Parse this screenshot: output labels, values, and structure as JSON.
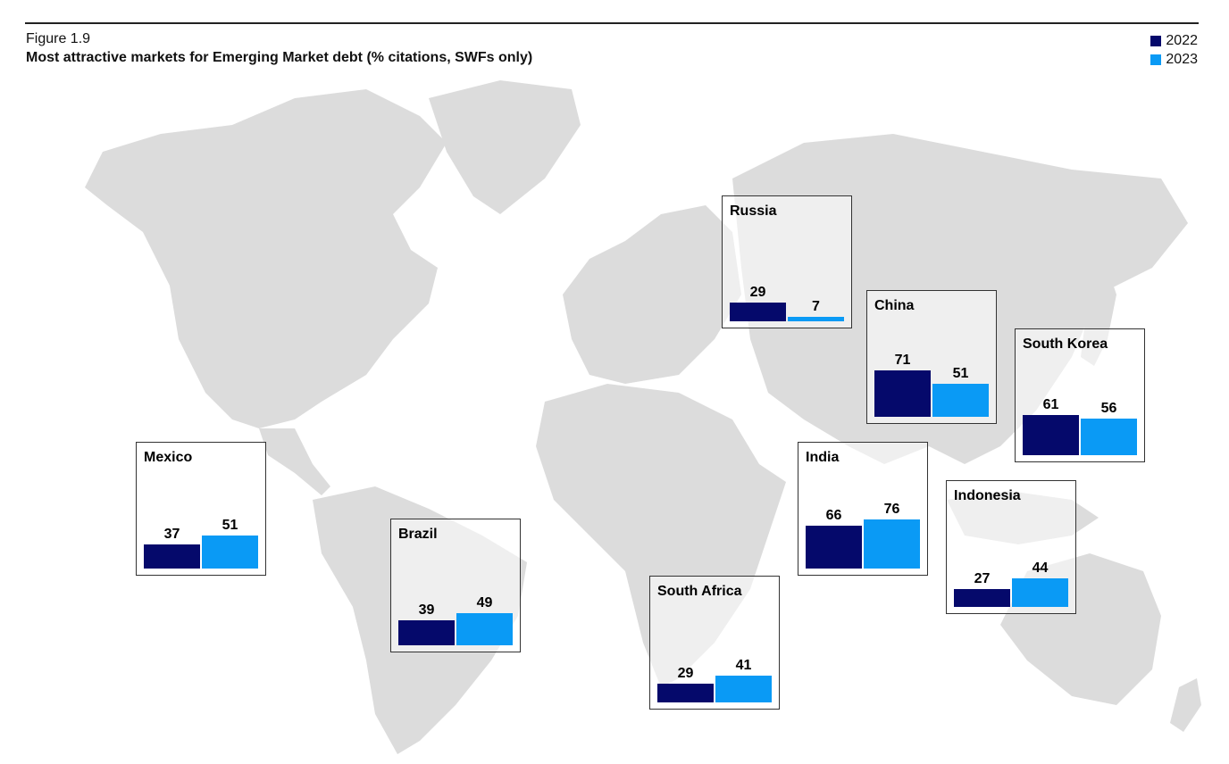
{
  "figure_label": "Figure 1.9",
  "title": "Most attractive markets for Emerging Market debt (% citations, SWFs only)",
  "colors": {
    "2022": "#05096b",
    "2023": "#0a9af5",
    "land": "#dcdcdc",
    "land_highlight": "#eeeeee"
  },
  "chart_data": {
    "type": "bar",
    "title": "Most attractive markets for Emerging Market debt (% citations, SWFs only)",
    "series_names": [
      "2022",
      "2023"
    ],
    "markets": [
      {
        "name": "Russia",
        "values": [
          29,
          7
        ]
      },
      {
        "name": "China",
        "values": [
          71,
          51
        ]
      },
      {
        "name": "South Korea",
        "values": [
          61,
          56
        ]
      },
      {
        "name": "Mexico",
        "values": [
          37,
          51
        ]
      },
      {
        "name": "India",
        "values": [
          66,
          76
        ]
      },
      {
        "name": "Indonesia",
        "values": [
          27,
          44
        ]
      },
      {
        "name": "Brazil",
        "values": [
          39,
          49
        ]
      },
      {
        "name": "South Africa",
        "values": [
          29,
          41
        ]
      }
    ]
  },
  "legend": [
    {
      "label": "2022"
    },
    {
      "label": "2023"
    }
  ]
}
